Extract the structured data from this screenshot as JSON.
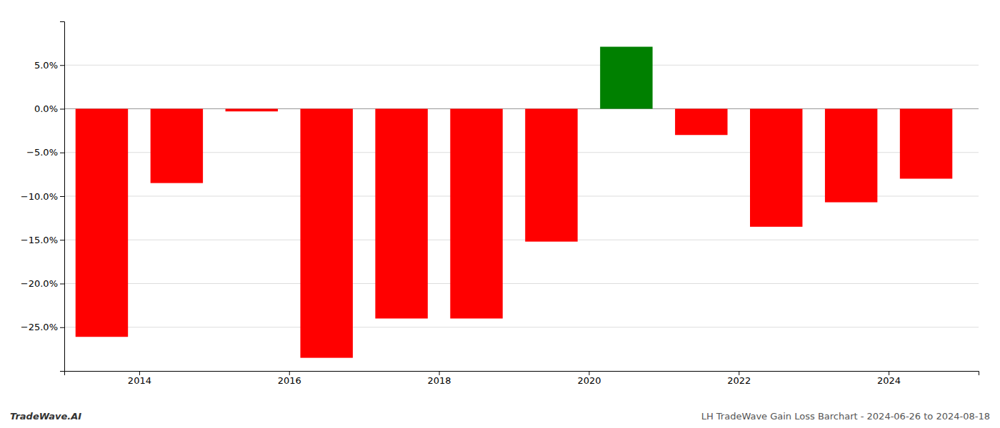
{
  "chart_data": {
    "type": "bar",
    "x": [
      2013.5,
      2014.5,
      2015.5,
      2016.5,
      2017.5,
      2018.5,
      2019.5,
      2020.5,
      2021.5,
      2022.5,
      2023.5,
      2024.5
    ],
    "values": [
      -0.261,
      -0.085,
      -0.003,
      -0.285,
      -0.24,
      -0.24,
      -0.152,
      0.071,
      -0.03,
      -0.135,
      -0.107,
      -0.08
    ],
    "colors": [
      "#ff0000",
      "#ff0000",
      "#ff0000",
      "#ff0000",
      "#ff0000",
      "#ff0000",
      "#ff0000",
      "#008000",
      "#ff0000",
      "#ff0000",
      "#ff0000",
      "#ff0000"
    ],
    "xlim": [
      2013.0,
      2025.2
    ],
    "xticks": [
      2014,
      2016,
      2018,
      2020,
      2022,
      2024
    ],
    "ylim": [
      -0.3,
      0.1
    ],
    "yticks": [
      {
        "value": -0.25,
        "label": "−25.0%"
      },
      {
        "value": -0.2,
        "label": "−20.0%"
      },
      {
        "value": -0.15,
        "label": "−15.0%"
      },
      {
        "value": -0.1,
        "label": "−10.0%"
      },
      {
        "value": -0.05,
        "label": "−5.0%"
      },
      {
        "value": 0.0,
        "label": "0.0%"
      },
      {
        "value": 0.05,
        "label": "5.0%"
      }
    ],
    "grid": true,
    "annotations": [
      "TradeWave.AI",
      "LH TradeWave Gain Loss Barchart - 2024-06-26 to 2024-08-18"
    ]
  }
}
